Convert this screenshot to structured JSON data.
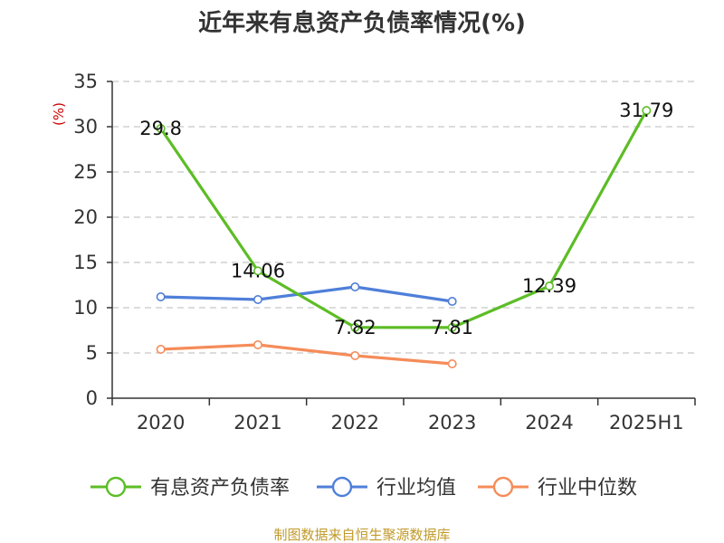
{
  "chart_data": {
    "type": "line",
    "title": "近年来有息资产负债率情况(%)",
    "ylabel": "(%)",
    "xlabel": "",
    "categories": [
      "2020",
      "2021",
      "2022",
      "2023",
      "2024",
      "2025H1"
    ],
    "ylim": [
      0,
      35
    ],
    "yticks": [
      0,
      5,
      10,
      15,
      20,
      25,
      30,
      35
    ],
    "grid": true,
    "legend_position": "bottom",
    "series": [
      {
        "name": "有息资产负债率",
        "color": "#5cbd25",
        "values": [
          29.8,
          14.06,
          7.82,
          7.81,
          12.39,
          31.79
        ],
        "labels": [
          "29.8",
          "14.06",
          "7.82",
          "7.81",
          "12.39",
          "31.79"
        ]
      },
      {
        "name": "行业均值",
        "color": "#4f7fd9",
        "values": [
          11.2,
          10.9,
          12.3,
          10.7,
          null,
          null
        ]
      },
      {
        "name": "行业中位数",
        "color": "#f58c59",
        "values": [
          5.4,
          5.9,
          4.7,
          3.8,
          null,
          null
        ]
      }
    ]
  },
  "source": {
    "text": "制图数据来自恒生聚源数据库",
    "color": "#c09a2a"
  },
  "colors": {
    "axis": "#333333",
    "grid": "#c8c8c8",
    "ylabel": "#cc0000"
  }
}
